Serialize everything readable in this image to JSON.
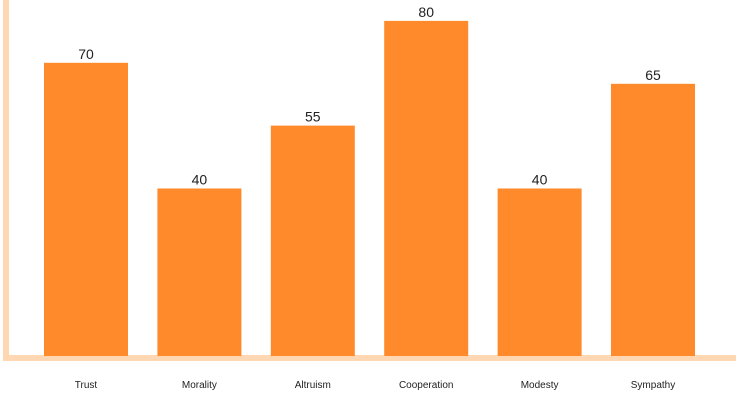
{
  "chart_data": {
    "type": "bar",
    "categories": [
      "Trust",
      "Morality",
      "Altruism",
      "Cooperation",
      "Modesty",
      "Sympathy"
    ],
    "values": [
      70,
      40,
      55,
      80,
      40,
      65
    ],
    "ylim": [
      0,
      85
    ],
    "grid": false,
    "legend": "none",
    "colors": {
      "bar": "#ff8a2b",
      "axis": "#ffd7b3",
      "text": "#222222"
    }
  }
}
